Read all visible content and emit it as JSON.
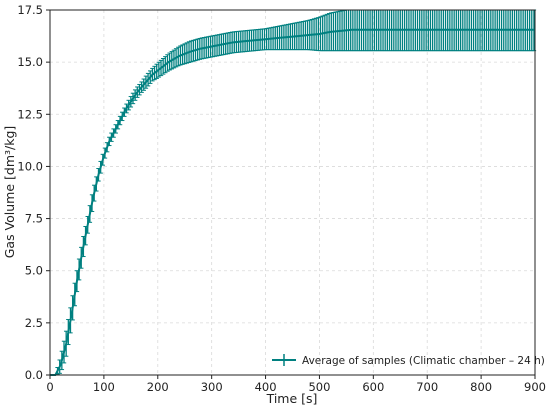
{
  "chart_data": {
    "type": "line",
    "title": "",
    "xlabel": "Time [s]",
    "ylabel": "Gas Volume [dm³/kg]",
    "xlim": [
      0,
      900
    ],
    "ylim": [
      0,
      17.5
    ],
    "x_ticks": [
      0,
      100,
      200,
      300,
      400,
      500,
      600,
      700,
      800,
      900
    ],
    "y_ticks": [
      0.0,
      2.5,
      5.0,
      7.5,
      10.0,
      12.5,
      15.0,
      17.5
    ],
    "x_tick_labels": [
      "0",
      "100",
      "200",
      "300",
      "400",
      "500",
      "600",
      "700",
      "800",
      "900"
    ],
    "y_tick_labels": [
      "0.0",
      "2.5",
      "5.0",
      "7.5",
      "10.0",
      "12.5",
      "15.0",
      "17.5"
    ],
    "grid": true,
    "legend_position": "bottom-right",
    "series": [
      {
        "name": "Average of samples (Climatic chamber – 24 h)",
        "color": "#008080",
        "error_bars": true,
        "x": [
          0,
          10,
          20,
          30,
          40,
          50,
          60,
          70,
          80,
          90,
          100,
          110,
          120,
          130,
          140,
          150,
          160,
          170,
          180,
          190,
          200,
          220,
          240,
          260,
          280,
          300,
          320,
          340,
          360,
          380,
          400,
          420,
          440,
          460,
          480,
          500,
          520,
          540,
          560,
          580,
          600,
          650,
          700,
          750,
          800,
          850,
          900
        ],
        "y": [
          0.0,
          0.0,
          0.5,
          1.5,
          2.9,
          4.5,
          5.9,
          7.2,
          8.5,
          9.6,
          10.5,
          11.2,
          11.7,
          12.2,
          12.7,
          13.1,
          13.5,
          13.8,
          14.1,
          14.4,
          14.6,
          15.0,
          15.3,
          15.5,
          15.65,
          15.75,
          15.85,
          15.95,
          16.0,
          16.05,
          16.1,
          16.15,
          16.2,
          16.25,
          16.3,
          16.35,
          16.45,
          16.5,
          16.55,
          16.55,
          16.55,
          16.55,
          16.55,
          16.55,
          16.55,
          16.55,
          16.55
        ],
        "error": [
          0.0,
          0.0,
          0.4,
          0.6,
          0.6,
          0.5,
          0.5,
          0.4,
          0.4,
          0.3,
          0.25,
          0.2,
          0.2,
          0.2,
          0.2,
          0.25,
          0.25,
          0.25,
          0.3,
          0.3,
          0.35,
          0.4,
          0.45,
          0.5,
          0.5,
          0.5,
          0.5,
          0.5,
          0.5,
          0.5,
          0.5,
          0.55,
          0.6,
          0.65,
          0.7,
          0.8,
          0.9,
          0.95,
          1.0,
          1.0,
          1.0,
          1.0,
          1.0,
          1.0,
          1.0,
          1.0,
          1.0
        ]
      }
    ]
  }
}
